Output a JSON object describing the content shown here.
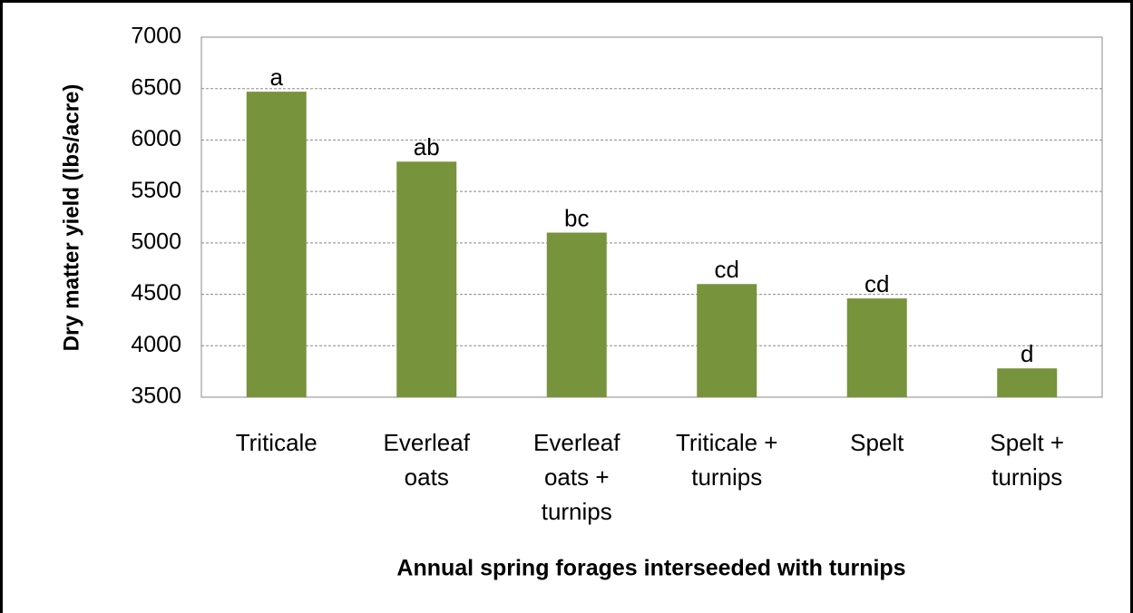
{
  "chart_data": {
    "type": "bar",
    "x_label": "Annual spring forages interseeded with turnips",
    "y_label": "Dry matter yield (lbs/acre)",
    "categories": [
      "Triticale",
      "Everleaf oats",
      "Everleaf oats + turnips",
      "Triticale + turnips",
      "Spelt",
      "Spelt + turnips"
    ],
    "values": [
      6470,
      5790,
      5100,
      4600,
      4460,
      3780
    ],
    "annotations": [
      "a",
      "ab",
      "bc",
      "cd",
      "cd",
      "d"
    ],
    "color": "#77933c",
    "ylim": [
      3500,
      7000
    ],
    "yticks": [
      3500,
      4000,
      4500,
      5000,
      5500,
      6000,
      6500,
      7000
    ],
    "grid": true
  }
}
